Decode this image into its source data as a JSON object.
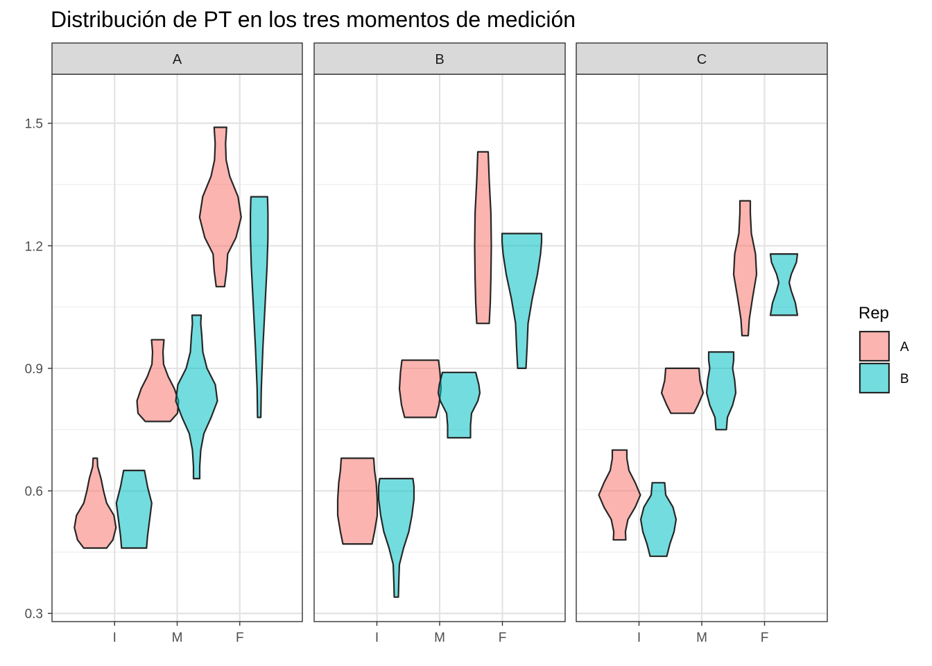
{
  "chart_data": {
    "type": "violin",
    "title": "Distribución de PT en los tres momentos de medición",
    "xlabel": "",
    "ylabel": "",
    "categories": [
      "I",
      "M",
      "F"
    ],
    "facets": [
      "A",
      "B",
      "C"
    ],
    "ylim": [
      0.28,
      1.62
    ],
    "yticks": [
      0.3,
      0.6,
      0.9,
      1.2,
      1.5
    ],
    "ytick_labels": [
      "0.3",
      "0.6",
      "0.9",
      "1.2",
      "1.5"
    ],
    "grid": true,
    "legend": {
      "title": "Rep",
      "placement": "right",
      "entries": [
        {
          "label": "A",
          "color": "#F8766D"
        },
        {
          "label": "B",
          "color": "#00BFC4"
        }
      ]
    },
    "fill_opacity": 0.55,
    "outline_color": "#262626",
    "series": [
      {
        "name": "A",
        "color": "#F8766D",
        "violins": [
          {
            "facet": "A",
            "x": "I",
            "ymin": 0.46,
            "ymax": 0.68,
            "profile": [
              [
                0.46,
                0.55
              ],
              [
                0.48,
                0.85
              ],
              [
                0.51,
                1.0
              ],
              [
                0.54,
                0.9
              ],
              [
                0.57,
                0.55
              ],
              [
                0.6,
                0.4
              ],
              [
                0.63,
                0.28
              ],
              [
                0.66,
                0.12
              ],
              [
                0.68,
                0.1
              ]
            ]
          },
          {
            "facet": "A",
            "x": "M",
            "ymin": 0.77,
            "ymax": 0.97,
            "profile": [
              [
                0.77,
                0.6
              ],
              [
                0.79,
                0.95
              ],
              [
                0.82,
                1.0
              ],
              [
                0.85,
                0.8
              ],
              [
                0.88,
                0.5
              ],
              [
                0.91,
                0.28
              ],
              [
                0.94,
                0.25
              ],
              [
                0.97,
                0.3
              ]
            ]
          },
          {
            "facet": "A",
            "x": "F",
            "ymin": 1.1,
            "ymax": 1.49,
            "profile": [
              [
                1.1,
                0.2
              ],
              [
                1.14,
                0.3
              ],
              [
                1.18,
                0.35
              ],
              [
                1.22,
                0.75
              ],
              [
                1.27,
                1.0
              ],
              [
                1.32,
                0.85
              ],
              [
                1.37,
                0.45
              ],
              [
                1.41,
                0.28
              ],
              [
                1.45,
                0.25
              ],
              [
                1.49,
                0.3
              ]
            ]
          },
          {
            "facet": "B",
            "x": "I",
            "ymin": 0.47,
            "ymax": 0.68,
            "profile": [
              [
                0.47,
                0.7
              ],
              [
                0.5,
                0.82
              ],
              [
                0.54,
                0.95
              ],
              [
                0.58,
                0.95
              ],
              [
                0.62,
                0.9
              ],
              [
                0.65,
                0.82
              ],
              [
                0.68,
                0.78
              ]
            ]
          },
          {
            "facet": "B",
            "x": "M",
            "ymin": 0.78,
            "ymax": 0.92,
            "profile": [
              [
                0.78,
                0.75
              ],
              [
                0.81,
                0.9
              ],
              [
                0.85,
                1.0
              ],
              [
                0.89,
                0.95
              ],
              [
                0.92,
                0.88
              ]
            ]
          },
          {
            "facet": "B",
            "x": "F",
            "ymin": 1.01,
            "ymax": 1.43,
            "profile": [
              [
                1.01,
                0.3
              ],
              [
                1.06,
                0.35
              ],
              [
                1.12,
                0.38
              ],
              [
                1.2,
                0.4
              ],
              [
                1.28,
                0.38
              ],
              [
                1.36,
                0.3
              ],
              [
                1.43,
                0.25
              ]
            ]
          },
          {
            "facet": "C",
            "x": "I",
            "ymin": 0.48,
            "ymax": 0.7,
            "profile": [
              [
                0.48,
                0.3
              ],
              [
                0.5,
                0.28
              ],
              [
                0.53,
                0.4
              ],
              [
                0.56,
                0.75
              ],
              [
                0.59,
                1.0
              ],
              [
                0.62,
                0.75
              ],
              [
                0.65,
                0.45
              ],
              [
                0.68,
                0.35
              ],
              [
                0.7,
                0.35
              ]
            ]
          },
          {
            "facet": "C",
            "x": "M",
            "ymin": 0.79,
            "ymax": 0.9,
            "profile": [
              [
                0.79,
                0.55
              ],
              [
                0.81,
                0.75
              ],
              [
                0.84,
                1.0
              ],
              [
                0.87,
                0.85
              ],
              [
                0.9,
                0.8
              ]
            ]
          },
          {
            "facet": "C",
            "x": "F",
            "ymin": 0.98,
            "ymax": 1.31,
            "profile": [
              [
                0.98,
                0.15
              ],
              [
                1.02,
                0.2
              ],
              [
                1.07,
                0.35
              ],
              [
                1.13,
                0.55
              ],
              [
                1.18,
                0.5
              ],
              [
                1.23,
                0.3
              ],
              [
                1.28,
                0.25
              ],
              [
                1.31,
                0.25
              ]
            ]
          }
        ]
      },
      {
        "name": "B",
        "color": "#00BFC4",
        "violins": [
          {
            "facet": "A",
            "x": "I",
            "ymin": 0.46,
            "ymax": 0.65,
            "profile": [
              [
                0.46,
                0.6
              ],
              [
                0.49,
                0.65
              ],
              [
                0.53,
                0.75
              ],
              [
                0.57,
                0.85
              ],
              [
                0.61,
                0.65
              ],
              [
                0.65,
                0.5
              ]
            ]
          },
          {
            "facet": "A",
            "x": "M",
            "ymin": 0.63,
            "ymax": 1.03,
            "profile": [
              [
                0.63,
                0.15
              ],
              [
                0.66,
                0.15
              ],
              [
                0.7,
                0.2
              ],
              [
                0.74,
                0.35
              ],
              [
                0.78,
                0.7
              ],
              [
                0.82,
                1.0
              ],
              [
                0.86,
                0.9
              ],
              [
                0.9,
                0.5
              ],
              [
                0.94,
                0.3
              ],
              [
                0.98,
                0.25
              ],
              [
                1.01,
                0.2
              ],
              [
                1.03,
                0.22
              ]
            ]
          },
          {
            "facet": "A",
            "x": "F",
            "ymin": 0.78,
            "ymax": 1.32,
            "profile": [
              [
                0.78,
                0.08
              ],
              [
                0.85,
                0.1
              ],
              [
                0.95,
                0.18
              ],
              [
                1.05,
                0.28
              ],
              [
                1.15,
                0.38
              ],
              [
                1.22,
                0.42
              ],
              [
                1.28,
                0.42
              ],
              [
                1.32,
                0.4
              ]
            ]
          },
          {
            "facet": "B",
            "x": "I",
            "ymin": 0.34,
            "ymax": 0.63,
            "profile": [
              [
                0.34,
                0.1
              ],
              [
                0.38,
                0.12
              ],
              [
                0.42,
                0.15
              ],
              [
                0.46,
                0.35
              ],
              [
                0.5,
                0.6
              ],
              [
                0.54,
                0.75
              ],
              [
                0.58,
                0.85
              ],
              [
                0.61,
                0.85
              ],
              [
                0.63,
                0.8
              ]
            ]
          },
          {
            "facet": "B",
            "x": "M",
            "ymin": 0.73,
            "ymax": 0.89,
            "profile": [
              [
                0.73,
                0.55
              ],
              [
                0.76,
                0.55
              ],
              [
                0.79,
                0.6
              ],
              [
                0.82,
                0.9
              ],
              [
                0.84,
                1.0
              ],
              [
                0.86,
                0.95
              ],
              [
                0.89,
                0.8
              ]
            ]
          },
          {
            "facet": "B",
            "x": "F",
            "ymin": 0.9,
            "ymax": 1.23,
            "profile": [
              [
                0.9,
                0.2
              ],
              [
                0.95,
                0.25
              ],
              [
                1.01,
                0.3
              ],
              [
                1.07,
                0.5
              ],
              [
                1.13,
                0.75
              ],
              [
                1.18,
                0.9
              ],
              [
                1.21,
                0.95
              ],
              [
                1.23,
                0.95
              ]
            ]
          },
          {
            "facet": "C",
            "x": "I",
            "ymin": 0.44,
            "ymax": 0.62,
            "profile": [
              [
                0.44,
                0.4
              ],
              [
                0.47,
                0.55
              ],
              [
                0.5,
                0.75
              ],
              [
                0.53,
                0.85
              ],
              [
                0.56,
                0.7
              ],
              [
                0.59,
                0.35
              ],
              [
                0.62,
                0.3
              ]
            ]
          },
          {
            "facet": "C",
            "x": "M",
            "ymin": 0.75,
            "ymax": 0.94,
            "profile": [
              [
                0.75,
                0.25
              ],
              [
                0.78,
                0.3
              ],
              [
                0.81,
                0.55
              ],
              [
                0.84,
                0.7
              ],
              [
                0.87,
                0.65
              ],
              [
                0.9,
                0.55
              ],
              [
                0.92,
                0.6
              ],
              [
                0.94,
                0.6
              ]
            ]
          },
          {
            "facet": "C",
            "x": "F",
            "ymin": 1.03,
            "ymax": 1.18,
            "profile": [
              [
                1.03,
                0.65
              ],
              [
                1.06,
                0.55
              ],
              [
                1.09,
                0.35
              ],
              [
                1.11,
                0.25
              ],
              [
                1.13,
                0.35
              ],
              [
                1.16,
                0.6
              ],
              [
                1.18,
                0.65
              ]
            ]
          }
        ]
      }
    ]
  }
}
